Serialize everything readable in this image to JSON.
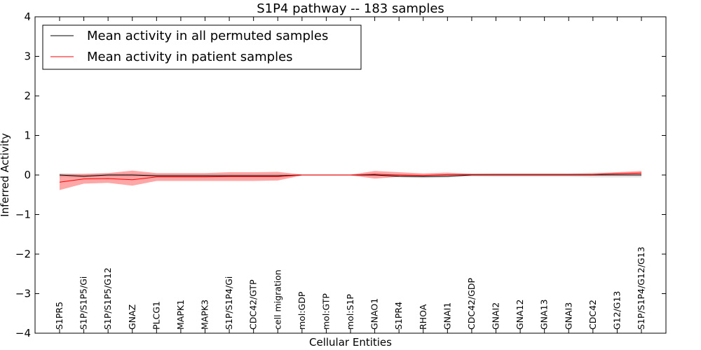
{
  "chart_data": {
    "type": "line",
    "title": "S1P4 pathway -- 183 samples",
    "xlabel": "Cellular Entities",
    "ylabel": "Inferred Activity",
    "ylim": [
      -4,
      4
    ],
    "yticks": [
      4,
      3,
      2,
      1,
      0,
      -1,
      -2,
      -3,
      -4
    ],
    "ytick_labels": [
      "4",
      "3",
      "2",
      "1",
      "0",
      "−1",
      "−2",
      "−3",
      "−4"
    ],
    "categories": [
      "S1PR5",
      "S1P/S1P5/Gi",
      "S1P/S1P5/G12",
      "GNAZ",
      "PLCG1",
      "MAPK1",
      "MAPK3",
      "S1P/S1P4/Gi",
      "CDC42/GTP",
      "cell migration",
      "mol:GDP",
      "mol:GTP",
      "mol:S1P",
      "GNAO1",
      "S1PR4",
      "RHOA",
      "GNAI1",
      "CDC42/GDP",
      "GNAI2",
      "GNA12",
      "GNA13",
      "GNAI3",
      "CDC42",
      "G12/G13",
      "S1P/S1P4/G12/G13"
    ],
    "legend_location": "upper-left",
    "series": [
      {
        "name": "Mean activity in all permuted samples",
        "color": "#000000",
        "values": [
          0.0,
          -0.03,
          0.0,
          0.0,
          -0.02,
          -0.02,
          -0.02,
          -0.02,
          -0.02,
          -0.02,
          0.0,
          0.0,
          0.0,
          0.0,
          -0.03,
          -0.04,
          -0.03,
          0.0,
          0.0,
          0.0,
          0.0,
          0.0,
          0.0,
          0.0,
          0.0
        ],
        "band_lower": [
          -0.05,
          -0.07,
          -0.04,
          -0.04,
          -0.05,
          -0.05,
          -0.05,
          -0.05,
          -0.05,
          -0.05,
          -0.02,
          -0.02,
          -0.02,
          -0.02,
          -0.06,
          -0.08,
          -0.07,
          -0.04,
          -0.05,
          -0.05,
          -0.05,
          -0.05,
          -0.06,
          -0.06,
          -0.06
        ],
        "band_upper": [
          0.05,
          0.02,
          0.04,
          0.04,
          0.02,
          0.02,
          0.02,
          0.02,
          0.02,
          0.02,
          0.02,
          0.02,
          0.02,
          0.02,
          0.02,
          0.01,
          0.02,
          0.04,
          0.05,
          0.05,
          0.05,
          0.05,
          0.06,
          0.06,
          0.06
        ],
        "band_color": "#b0b0b0"
      },
      {
        "name": "Mean activity in patient samples",
        "color": "#ff0000",
        "values": [
          -0.18,
          -0.1,
          -0.09,
          -0.12,
          -0.05,
          -0.05,
          -0.05,
          -0.04,
          -0.04,
          -0.04,
          0.0,
          0.0,
          0.0,
          0.02,
          0.0,
          -0.01,
          0.01,
          0.01,
          0.01,
          0.01,
          0.01,
          0.01,
          0.01,
          0.03,
          0.05
        ],
        "band_lower": [
          -0.38,
          -0.22,
          -0.2,
          -0.27,
          -0.15,
          -0.15,
          -0.15,
          -0.15,
          -0.15,
          -0.14,
          -0.01,
          -0.01,
          -0.01,
          -0.09,
          -0.05,
          -0.05,
          -0.03,
          -0.01,
          -0.01,
          -0.01,
          -0.01,
          -0.01,
          -0.01,
          0.0,
          0.0
        ],
        "band_upper": [
          0.02,
          0.03,
          0.05,
          0.11,
          0.05,
          0.05,
          0.05,
          0.07,
          0.07,
          0.08,
          0.01,
          0.01,
          0.01,
          0.1,
          0.07,
          0.04,
          0.06,
          0.03,
          0.03,
          0.03,
          0.03,
          0.03,
          0.04,
          0.07,
          0.1
        ],
        "band_color": "#ff0000"
      }
    ]
  }
}
